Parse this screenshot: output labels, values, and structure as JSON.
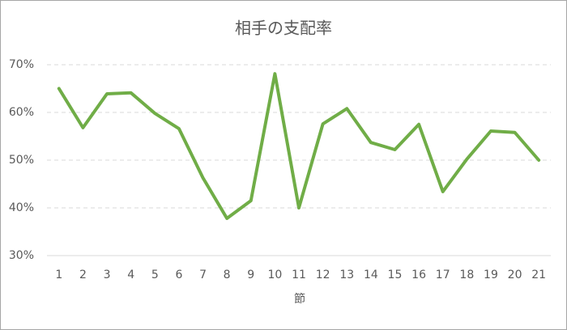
{
  "chart_data": {
    "type": "line",
    "title": "相手の支配率",
    "x_label": "節",
    "categories": [
      "1",
      "2",
      "3",
      "4",
      "5",
      "6",
      "7",
      "8",
      "9",
      "10",
      "11",
      "12",
      "13",
      "14",
      "15",
      "16",
      "17",
      "18",
      "19",
      "20",
      "21"
    ],
    "series": [
      {
        "name": "相手の支配率",
        "color": "#70ad47",
        "values": [
          65,
          56.8,
          63.9,
          64.1,
          59.8,
          56.6,
          46.3,
          37.8,
          41.5,
          68.1,
          40,
          57.6,
          60.8,
          53.7,
          52.2,
          57.5,
          43.4,
          50.2,
          56.1,
          55.8,
          50
        ]
      }
    ],
    "ylim": [
      30,
      70
    ],
    "yticks": [
      {
        "value": 30,
        "label": "30%"
      },
      {
        "value": 40,
        "label": "40%"
      },
      {
        "value": 50,
        "label": "50%"
      },
      {
        "value": 60,
        "label": "60%"
      },
      {
        "value": 70,
        "label": "70%"
      }
    ],
    "grid": true
  }
}
